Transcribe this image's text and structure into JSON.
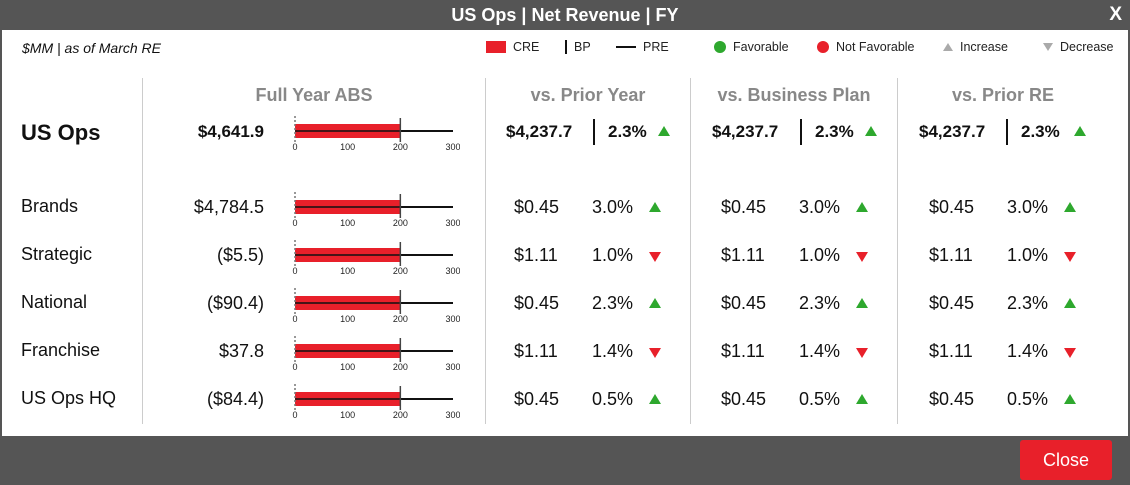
{
  "title": "US Ops | Net Revenue | FY",
  "close_x": "X",
  "units": "$MM | as of March RE",
  "legend": {
    "cre": "CRE",
    "bp": "BP",
    "pre": "PRE",
    "favorable": "Favorable",
    "not_favorable": "Not Favorable",
    "increase": "Increase",
    "decrease": "Decrease"
  },
  "headers": {
    "abs": "Full Year ABS",
    "prior_year": "vs. Prior Year",
    "business_plan": "vs. Business Plan",
    "prior_re": "vs. Prior RE"
  },
  "axis_ticks": [
    "0",
    "100",
    "200",
    "300"
  ],
  "bullet_scale": {
    "min": 0,
    "max": 300
  },
  "colors": {
    "cre": "#e8202a",
    "favorable": "#2ea82e",
    "not_favorable": "#e8202a",
    "neutral": "#aaaaaa"
  },
  "rows": [
    {
      "label": "US Ops",
      "value": "$4,641.9",
      "main": true,
      "bullet": {
        "cre": 200,
        "bp": 200,
        "pre": 300
      },
      "prior_year": {
        "value": "$4,237.7",
        "pct": "2.3%",
        "direction": "up"
      },
      "business_plan": {
        "value": "$4,237.7",
        "pct": "2.3%",
        "direction": "up"
      },
      "prior_re": {
        "value": "$4,237.7",
        "pct": "2.3%",
        "direction": "up"
      }
    },
    {
      "label": "Brands",
      "value": "$4,784.5",
      "bullet": {
        "cre": 200,
        "bp": 200,
        "pre": 300
      },
      "prior_year": {
        "value": "$0.45",
        "pct": "3.0%",
        "direction": "up"
      },
      "business_plan": {
        "value": "$0.45",
        "pct": "3.0%",
        "direction": "up"
      },
      "prior_re": {
        "value": "$0.45",
        "pct": "3.0%",
        "direction": "up"
      }
    },
    {
      "label": "Strategic",
      "value": "($5.5)",
      "bullet": {
        "cre": 200,
        "bp": 200,
        "pre": 300
      },
      "prior_year": {
        "value": "$1.11",
        "pct": "1.0%",
        "direction": "down"
      },
      "business_plan": {
        "value": "$1.11",
        "pct": "1.0%",
        "direction": "down"
      },
      "prior_re": {
        "value": "$1.11",
        "pct": "1.0%",
        "direction": "down"
      }
    },
    {
      "label": "National",
      "value": "($90.4)",
      "bullet": {
        "cre": 200,
        "bp": 200,
        "pre": 300
      },
      "prior_year": {
        "value": "$0.45",
        "pct": "2.3%",
        "direction": "up"
      },
      "business_plan": {
        "value": "$0.45",
        "pct": "2.3%",
        "direction": "up"
      },
      "prior_re": {
        "value": "$0.45",
        "pct": "2.3%",
        "direction": "up"
      }
    },
    {
      "label": "Franchise",
      "value": "$37.8",
      "bullet": {
        "cre": 200,
        "bp": 200,
        "pre": 300
      },
      "prior_year": {
        "value": "$1.11",
        "pct": "1.4%",
        "direction": "down"
      },
      "business_plan": {
        "value": "$1.11",
        "pct": "1.4%",
        "direction": "down"
      },
      "prior_re": {
        "value": "$1.11",
        "pct": "1.4%",
        "direction": "down"
      }
    },
    {
      "label": "US Ops HQ",
      "value": "($84.4)",
      "bullet": {
        "cre": 200,
        "bp": 200,
        "pre": 300
      },
      "prior_year": {
        "value": "$0.45",
        "pct": "0.5%",
        "direction": "up"
      },
      "business_plan": {
        "value": "$0.45",
        "pct": "0.5%",
        "direction": "up"
      },
      "prior_re": {
        "value": "$0.45",
        "pct": "0.5%",
        "direction": "up"
      }
    }
  ],
  "close_button": "Close"
}
